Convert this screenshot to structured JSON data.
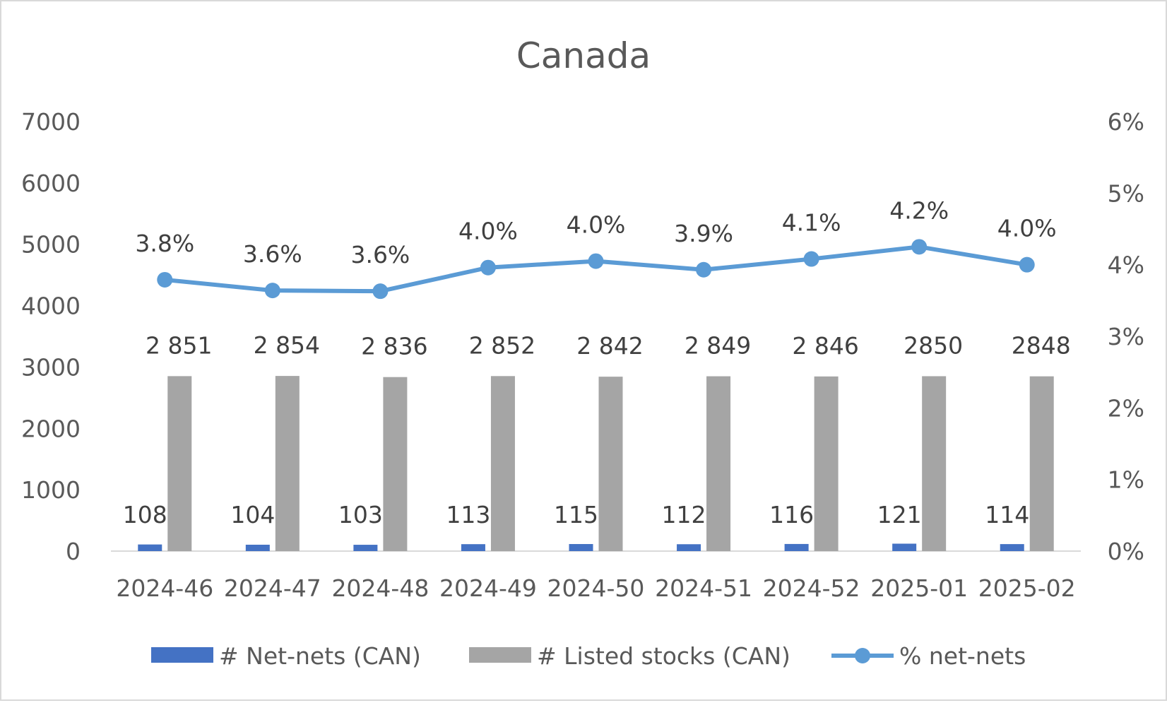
{
  "chart_data": {
    "type": "bar",
    "title": "Canada",
    "categories": [
      "2024-46",
      "2024-47",
      "2024-48",
      "2024-49",
      "2024-50",
      "2024-51",
      "2024-52",
      "2025-01",
      "2025-02"
    ],
    "series": [
      {
        "name": "# Net-nets (CAN)",
        "type": "bar",
        "axis": "left",
        "color": "#4472c4",
        "values": [
          108,
          104,
          103,
          113,
          115,
          112,
          116,
          121,
          114
        ],
        "labels": [
          "108",
          "104",
          "103",
          "113",
          "115",
          "112",
          "116",
          "121",
          "114"
        ]
      },
      {
        "name": "# Listed stocks (CAN)",
        "type": "bar",
        "axis": "left",
        "color": "#a5a5a5",
        "values": [
          2851,
          2854,
          2836,
          2852,
          2842,
          2849,
          2846,
          2850,
          2848
        ],
        "labels": [
          "2 851",
          "2 854",
          "2 836",
          "2 852",
          "2 842",
          "2 849",
          "2 846",
          "2850",
          "2848"
        ]
      },
      {
        "name": "% net-nets",
        "type": "line",
        "axis": "right",
        "color": "#5b9bd5",
        "values": [
          3.79,
          3.64,
          3.63,
          3.96,
          4.05,
          3.93,
          4.08,
          4.25,
          4.0
        ],
        "labels": [
          "3.8%",
          "3.6%",
          "3.6%",
          "4.0%",
          "4.0%",
          "3.9%",
          "4.1%",
          "4.2%",
          "4.0%"
        ]
      }
    ],
    "y_left": {
      "min": 0,
      "max": 7000,
      "ticks": [
        "0",
        "1000",
        "2000",
        "3000",
        "4000",
        "5000",
        "6000",
        "7000"
      ]
    },
    "y_right": {
      "min": 0,
      "max": 6,
      "ticks": [
        "0%",
        "1%",
        "2%",
        "3%",
        "4%",
        "5%",
        "6%"
      ]
    },
    "grid": false,
    "legend_position": "bottom"
  }
}
